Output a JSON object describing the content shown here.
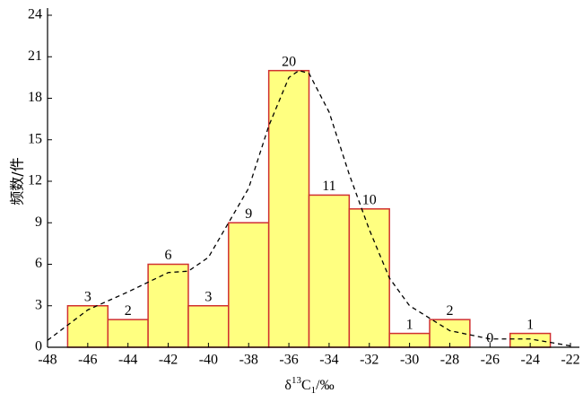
{
  "chart_data": {
    "type": "histogram",
    "bins": [
      -47,
      -45,
      -43,
      -41,
      -39,
      -37,
      -35,
      -33,
      -31,
      -29,
      -27,
      -25,
      -23
    ],
    "values": [
      3,
      2,
      6,
      3,
      9,
      20,
      11,
      10,
      1,
      2,
      0,
      1
    ],
    "color": "#ffff80",
    "edgecolor": "#d03030",
    "xlim": [
      -48,
      -22
    ],
    "xticks": [
      -48,
      -46,
      -44,
      -42,
      -40,
      -38,
      -36,
      -34,
      -32,
      -30,
      -28,
      -26,
      -24,
      -22
    ],
    "ylim": [
      0,
      24
    ],
    "yticks": [
      0,
      3,
      6,
      9,
      12,
      15,
      18,
      21,
      24
    ],
    "ylabel": "频数/件",
    "xlabel": {
      "symbol": "δ",
      "sup": "13",
      "element": "C",
      "sub": "1",
      "unit": "/‰"
    },
    "curve": {
      "x": [
        -48,
        -46,
        -44,
        -42,
        -41,
        -40,
        -38,
        -37,
        -36,
        -35.5,
        -35,
        -34,
        -33,
        -32,
        -31,
        -30,
        -28,
        -26,
        -24,
        -22
      ],
      "y": [
        0.5,
        2.7,
        4.0,
        5.4,
        5.5,
        6.5,
        11.5,
        16,
        19.5,
        20,
        19.8,
        17,
        12.5,
        8.5,
        5,
        3,
        1.2,
        0.6,
        0.6,
        0.1
      ],
      "color": "#000000"
    }
  }
}
